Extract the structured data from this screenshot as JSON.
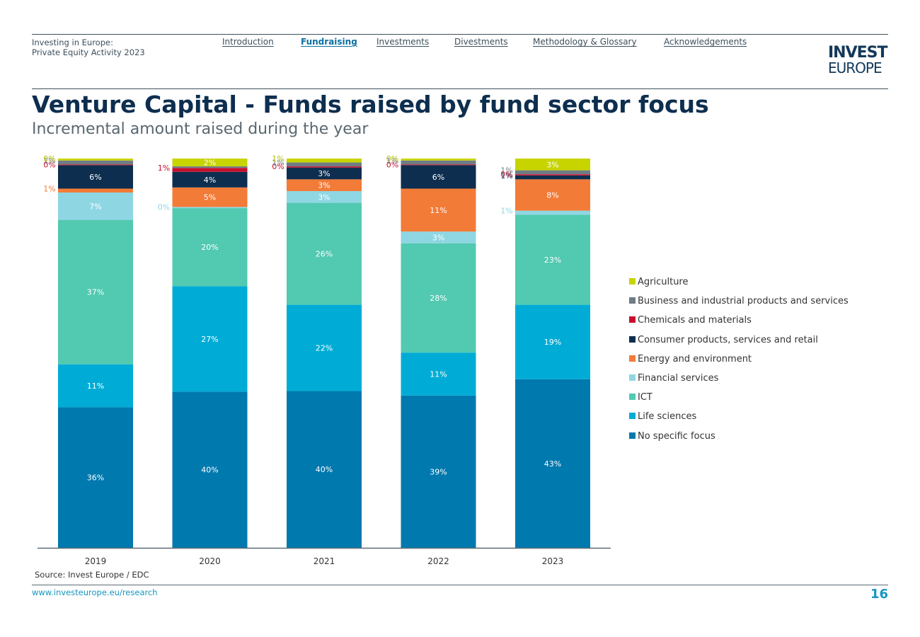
{
  "header": {
    "report_title_line1": "Investing in Europe:",
    "report_title_line2": "Private Equity Activity 2023",
    "nav": [
      {
        "label": "Introduction",
        "active": false
      },
      {
        "label": "Fundraising",
        "active": true
      },
      {
        "label": "Investments",
        "active": false
      },
      {
        "label": "Divestments",
        "active": false
      },
      {
        "label": "Methodology & Glossary",
        "active": false
      },
      {
        "label": "Acknowledgements",
        "active": false
      }
    ],
    "logo_line1": "INVEST",
    "logo_line2": "EUROPE"
  },
  "page": {
    "title": "Venture Capital - Funds raised by fund sector focus",
    "subtitle": "Incremental amount raised during the year"
  },
  "chart_data": {
    "type": "bar",
    "stacked": true,
    "percent_scale": true,
    "categories": [
      "2019",
      "2020",
      "2021",
      "2022",
      "2023"
    ],
    "series": [
      {
        "name": "No specific focus",
        "color": "#0079ae",
        "values": [
          36,
          40,
          40,
          39,
          43
        ],
        "labels": [
          "36%",
          "40%",
          "40%",
          "39%",
          "43%"
        ]
      },
      {
        "name": "Life sciences",
        "color": "#00acd6",
        "values": [
          11,
          27,
          22,
          11,
          19
        ],
        "labels": [
          "11%",
          "27%",
          "22%",
          "11%",
          "19%"
        ]
      },
      {
        "name": "ICT",
        "color": "#52c9b1",
        "values": [
          37,
          20,
          26,
          28,
          23
        ],
        "labels": [
          "37%",
          "20%",
          "26%",
          "28%",
          "23%"
        ]
      },
      {
        "name": "Financial services",
        "color": "#8fd6e3",
        "values": [
          7,
          0.3,
          3,
          3,
          1
        ],
        "labels": [
          "7%",
          "0%",
          "3%",
          "3%",
          "1%"
        ]
      },
      {
        "name": "Energy and environment",
        "color": "#f27b38",
        "values": [
          1,
          5,
          3,
          11,
          8
        ],
        "labels": [
          "1%",
          "5%",
          "3%",
          "11%",
          "8%"
        ]
      },
      {
        "name": "Consumer products, services and retail",
        "color": "#0d2e4f",
        "values": [
          6,
          4,
          3,
          6,
          1
        ],
        "labels": [
          "6%",
          "4%",
          "3%",
          "6%",
          "1%"
        ]
      },
      {
        "name": "Chemicals and materials",
        "color": "#c8102e",
        "values": [
          0.2,
          1,
          0.3,
          0.2,
          0.3
        ],
        "labels": [
          "0%",
          "1%",
          "0%",
          "0%",
          "0%"
        ]
      },
      {
        "name": "Business and industrial products and services",
        "color": "#6e7c86",
        "values": [
          1,
          0.4,
          1,
          1,
          1
        ],
        "labels": [
          "1%",
          "",
          "1%",
          "1%",
          "1%"
        ]
      },
      {
        "name": "Agriculture",
        "color": "#c8d400",
        "values": [
          0.5,
          2,
          1,
          0.5,
          3
        ],
        "labels": [
          "0%",
          "2%",
          "1%",
          "0%",
          "3%"
        ]
      }
    ],
    "legend_order": [
      "Agriculture",
      "Business and industrial products and services",
      "Chemicals and materials",
      "Consumer products, services and retail",
      "Energy and environment",
      "Financial services",
      "ICT",
      "Life sciences",
      "No specific focus"
    ],
    "legend_position": "right",
    "source": "Source: Invest Europe / EDC"
  },
  "footer": {
    "url": "www.investeurope.eu/research",
    "page_number": "16"
  }
}
